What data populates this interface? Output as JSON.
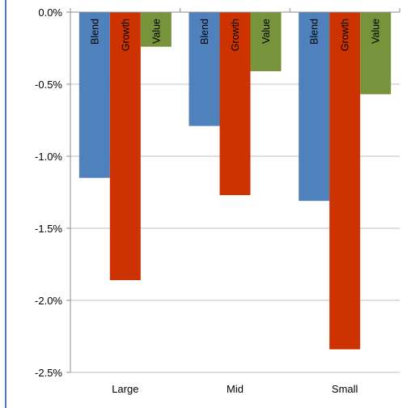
{
  "chart_data": {
    "type": "bar",
    "categories": [
      "Large",
      "Mid",
      "Small"
    ],
    "series": [
      {
        "name": "Blend",
        "color": "#4f81bd",
        "values": [
          -1.15,
          -0.79,
          -1.31
        ]
      },
      {
        "name": "Growth",
        "color": "#cc3300",
        "values": [
          -1.86,
          -1.27,
          -2.34
        ]
      },
      {
        "name": "Value",
        "color": "#77933c",
        "values": [
          -0.24,
          -0.41,
          -0.57
        ]
      }
    ],
    "ylim": [
      -2.5,
      0
    ],
    "yticks": [
      0,
      -0.5,
      -1.0,
      -1.5,
      -2.0,
      -2.5
    ],
    "ytick_labels": [
      "0.0%",
      "-0.5%",
      "-1.0%",
      "-1.5%",
      "-2.0%",
      "-2.5%"
    ],
    "grid": true,
    "title": "",
    "xlabel": "",
    "ylabel": ""
  }
}
